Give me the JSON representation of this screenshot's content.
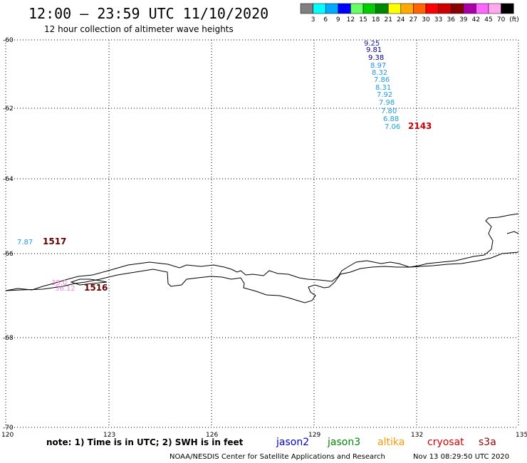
{
  "header": {
    "title": "12:00 – 23:59 UTC 11/10/2020",
    "subtitle": "12 hour collection of altimeter wave heights"
  },
  "scale": {
    "labels": [
      "3",
      "6",
      "9",
      "12",
      "15",
      "18",
      "21",
      "24",
      "27",
      "30",
      "33",
      "36",
      "39",
      "42",
      "45",
      "70"
    ],
    "unit": "(ft)",
    "colors": [
      "#808080",
      "#00ffff",
      "#00aaff",
      "#0000ff",
      "#66ff66",
      "#00cc00",
      "#008800",
      "#ffff00",
      "#ffaa00",
      "#ff6600",
      "#ff0000",
      "#cc0000",
      "#880000",
      "#aa00aa",
      "#ff66ff",
      "#ffaaee",
      "#000000"
    ]
  },
  "axes": {
    "x_ticks": [
      "120",
      "123",
      "126",
      "129",
      "132",
      "135"
    ],
    "y_ticks": [
      "-60",
      "-62",
      "-64",
      "-66",
      "-68",
      "-70"
    ]
  },
  "tracks": [
    {
      "time": "2143",
      "time_color": "#cc0000",
      "points": [
        {
          "value": "9.25",
          "color": "#1a1aa0"
        },
        {
          "value": "9.81",
          "color": "#00008b"
        },
        {
          "value": "9.38",
          "color": "#00008b"
        },
        {
          "value": "8.97",
          "color": "#1e90ff"
        },
        {
          "value": "8.32",
          "color": "#1e9ee0"
        },
        {
          "value": "7.86",
          "color": "#1e9ee0"
        },
        {
          "value": "8.31",
          "color": "#1e9ee0"
        },
        {
          "value": "7.92",
          "color": "#1e9ee0"
        },
        {
          "value": "7.98",
          "color": "#1e9ee0"
        },
        {
          "value": "7.80",
          "color": "#1e9ee0"
        },
        {
          "value": "6.88",
          "color": "#1e9ee0"
        },
        {
          "value": "7.06",
          "color": "#1e9ee0"
        }
      ]
    },
    {
      "time": "1517",
      "time_color": "#660000",
      "points": [
        {
          "value": "7.87",
          "color": "#1e9ee0"
        }
      ]
    },
    {
      "time": "1516",
      "time_color": "#660000",
      "points": [
        {
          "value": "36.12",
          "color": "#ee88dd"
        },
        {
          "value": "35.0",
          "color": "#ee88dd"
        }
      ]
    }
  ],
  "note": "note: 1) Time is in UTC; 2) SWH is in feet",
  "satellites": [
    {
      "name": "jason2",
      "color": "#0000dd"
    },
    {
      "name": "jason3",
      "color": "#008800"
    },
    {
      "name": "altika",
      "color": "#ff9900"
    },
    {
      "name": "cryosat",
      "color": "#dd0000"
    },
    {
      "name": "s3a",
      "color": "#990000"
    }
  ],
  "footer": {
    "credit": "NOAA/NESDIS Center for Satellite Applications and Research",
    "timestamp": "Nov 13 08:29:50 UTC 2020"
  }
}
